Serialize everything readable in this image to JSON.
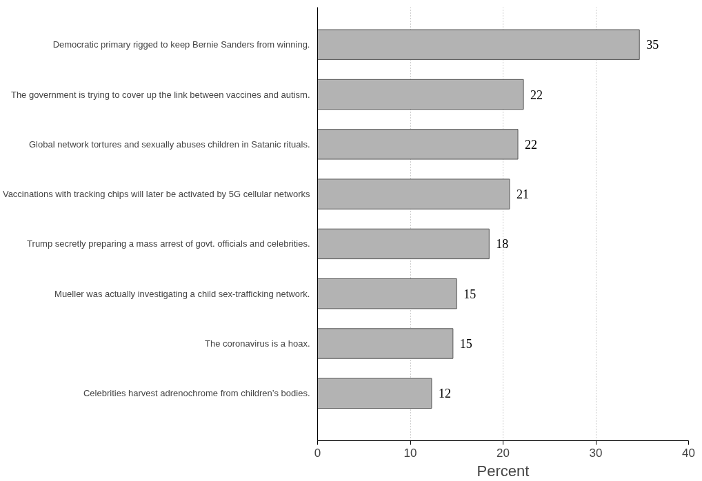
{
  "chart_data": {
    "type": "bar",
    "orientation": "horizontal",
    "xlabel": "Percent",
    "categories": [
      "Democratic primary rigged to keep Bernie Sanders from winning.",
      "The government is trying to cover up the link between vaccines and autism.",
      "Global network tortures and sexually abuses children in Satanic rituals.",
      "Vaccinations with tracking chips will later be activated by 5G cellular networks",
      "Trump secretly preparing a mass arrest of govt. officials and celebrities.",
      "Mueller was actually investigating a child sex-trafficking network.",
      "The coronavirus is a hoax.",
      "Celebrities harvest adrenochrome from children’s bodies."
    ],
    "values": [
      34.7,
      22.2,
      21.6,
      20.7,
      18.5,
      15.0,
      14.6,
      12.3
    ],
    "value_labels": [
      "35",
      "22",
      "22",
      "21",
      "18",
      "15",
      "15",
      "12"
    ],
    "color": "#b3b3b3",
    "xlim": [
      0,
      40
    ],
    "xticks": [
      0,
      10,
      20,
      30,
      40
    ],
    "grid": "x"
  }
}
